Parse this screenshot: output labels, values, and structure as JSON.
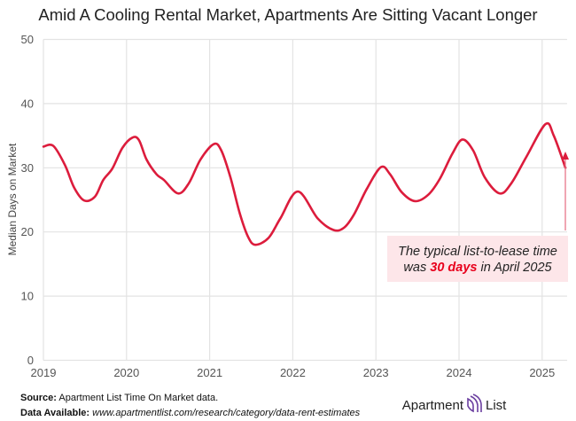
{
  "chart_data": {
    "type": "line",
    "title": "Amid A Cooling Rental Market, Apartments Are Sitting Vacant Longer",
    "xlabel": "",
    "ylabel": "Median Days on Market",
    "xlim": [
      2019,
      2025.3
    ],
    "ylim": [
      0,
      50
    ],
    "x_ticks": [
      "2019",
      "2020",
      "2021",
      "2022",
      "2023",
      "2024",
      "2025"
    ],
    "y_ticks": [
      "0",
      "10",
      "20",
      "30",
      "40",
      "50"
    ],
    "grid": true,
    "line_color": "#dc1c3c",
    "series": [
      {
        "x": [
          2019.0,
          2019.12,
          2019.26,
          2019.37,
          2019.49,
          2019.62,
          2019.72,
          2019.83,
          2019.95,
          2020.07,
          2020.15,
          2020.24,
          2020.36,
          2020.45,
          2020.62,
          2020.75,
          2020.89,
          2021.05,
          2021.14,
          2021.25,
          2021.36,
          2021.46,
          2021.55,
          2021.71,
          2021.85,
          2022.06,
          2022.3,
          2022.49,
          2022.62,
          2022.74,
          2022.89,
          2023.06,
          2023.17,
          2023.31,
          2023.47,
          2023.63,
          2023.77,
          2023.92,
          2024.04,
          2024.17,
          2024.31,
          2024.49,
          2024.63,
          2024.81,
          2025.04,
          2025.14,
          2025.28
        ],
        "y": [
          33.3,
          33.4,
          30.4,
          26.9,
          24.9,
          25.5,
          28.1,
          29.9,
          33.1,
          34.7,
          34.3,
          31.3,
          29.0,
          28.1,
          26.0,
          27.6,
          31.3,
          33.7,
          32.7,
          28.5,
          23.0,
          19.3,
          18.0,
          19.1,
          22.1,
          26.3,
          22.1,
          20.3,
          20.7,
          22.8,
          26.7,
          30.1,
          29.0,
          26.2,
          24.8,
          25.8,
          28.3,
          32.2,
          34.4,
          32.7,
          28.5,
          26.0,
          27.6,
          31.7,
          36.8,
          35.0,
          30.0
        ]
      }
    ],
    "annotation": {
      "line1": "The typical list-to-lease time",
      "line2_pre": "was ",
      "line2_em": "30 days",
      "line2_post": " in April 2025",
      "box_color": "#fde6e9",
      "arrow_color": "#e8758a"
    }
  },
  "footer": {
    "source_label": "Source:",
    "source_text": "Apartment List Time On Market data.",
    "data_label": "Data Available:",
    "data_url": "www.apartmentlist.com/research/category/data-rent-estimates"
  },
  "logo": {
    "text_left": "Apartment",
    "text_right": "List",
    "color": "#6b3fa0"
  }
}
